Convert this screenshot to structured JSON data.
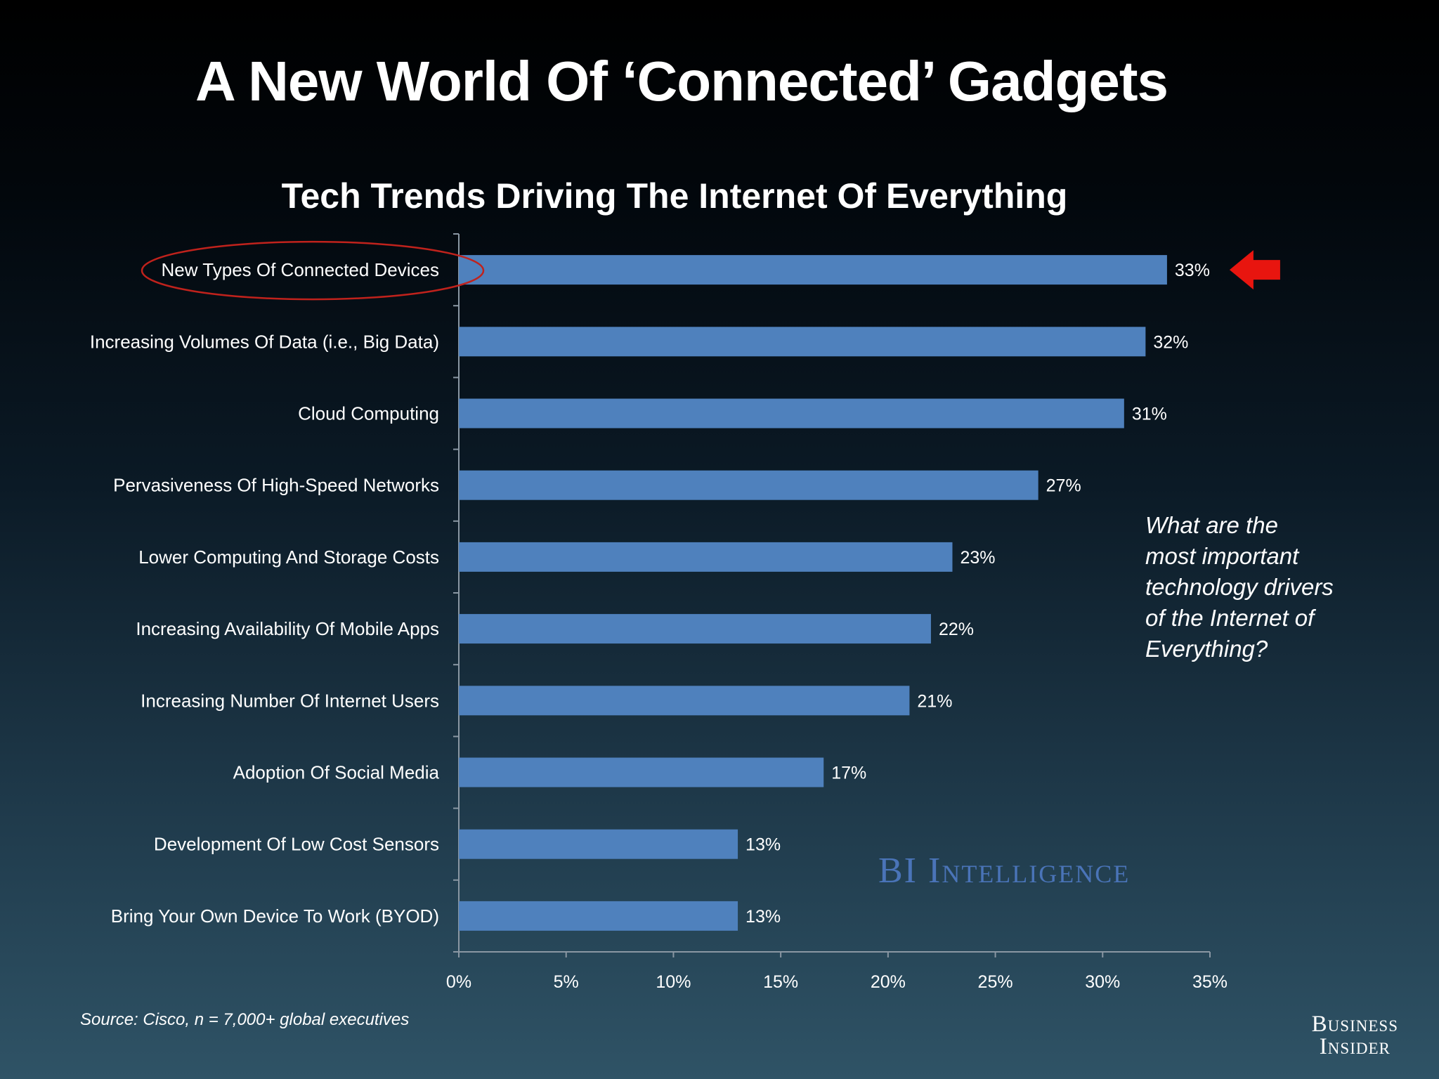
{
  "slide": {
    "title": "A New World Of ‘Connected’ Gadgets",
    "question_lines": [
      "What are the",
      "most important",
      "technology drivers",
      "of the Internet of",
      "Everything?"
    ],
    "watermark": "BI Intelligence",
    "source": "Source: Cisco, n = 7,000+ global executives",
    "brand_lines": [
      "Business",
      "Insider"
    ]
  },
  "chart_data": {
    "type": "bar",
    "orientation": "horizontal",
    "title": "Tech Trends Driving The Internet Of Everything",
    "categories": [
      "New Types Of Connected Devices",
      "Increasing Volumes Of Data (i.e., Big Data)",
      "Cloud Computing",
      "Pervasiveness Of High-Speed Networks",
      "Lower Computing And Storage Costs",
      "Increasing Availability Of Mobile Apps",
      "Increasing Number Of Internet Users",
      "Adoption Of Social Media",
      "Development Of Low Cost Sensors",
      "Bring Your Own Device To Work (BYOD)"
    ],
    "values": [
      33,
      32,
      31,
      27,
      23,
      22,
      21,
      17,
      13,
      13
    ],
    "value_labels": [
      "33%",
      "32%",
      "31%",
      "27%",
      "23%",
      "22%",
      "21%",
      "17%",
      "13%",
      "13%"
    ],
    "xlim": [
      0,
      35
    ],
    "xticks": [
      0,
      5,
      10,
      15,
      20,
      25,
      30,
      35
    ],
    "xtick_labels": [
      "0%",
      "5%",
      "10%",
      "15%",
      "20%",
      "25%",
      "30%",
      "35%"
    ],
    "xlabel": "",
    "ylabel": "",
    "grid": false,
    "highlighted_category": "New Types Of Connected Devices",
    "bar_color": "#4f81bd",
    "highlight_color": "#c0221c",
    "arrow_color": "#e8150f"
  }
}
